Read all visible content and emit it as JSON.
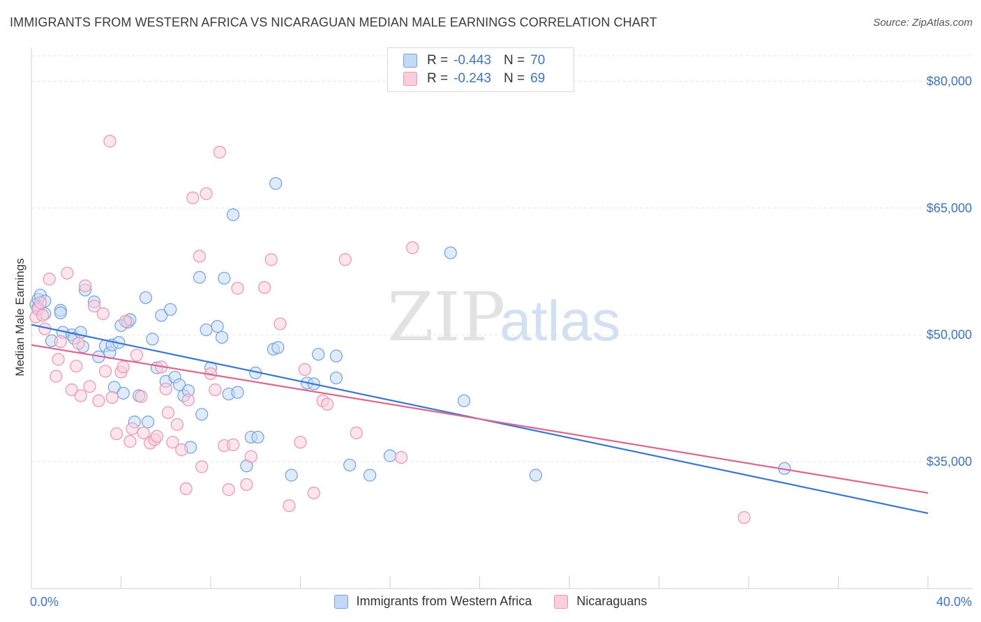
{
  "title": "IMMIGRANTS FROM WESTERN AFRICA VS NICARAGUAN MEDIAN MALE EARNINGS CORRELATION CHART",
  "source": "Source: ZipAtlas.com",
  "watermark": {
    "zip": "ZIP",
    "atlas": "atlas"
  },
  "legend_top": {
    "rows": [
      {
        "r_label": "R =",
        "r_value": "-0.443",
        "n_label": "N =",
        "n_value": "70",
        "color": "#a9c8f0"
      },
      {
        "r_label": "R =",
        "r_value": "-0.243",
        "n_label": "N =",
        "n_value": "69",
        "color": "#f6b8cb"
      }
    ]
  },
  "chart_data": {
    "type": "scatter",
    "title": "IMMIGRANTS FROM WESTERN AFRICA VS NICARAGUAN MEDIAN MALE EARNINGS CORRELATION CHART",
    "xlabel": "",
    "ylabel": "Median Male Earnings",
    "xlim": [
      0,
      40
    ],
    "ylim": [
      20000,
      83000
    ],
    "x_tick_labels": [
      "0.0%",
      "40.0%"
    ],
    "y_ticks": [
      35000,
      50000,
      65000,
      80000
    ],
    "y_tick_labels": [
      "$35,000",
      "$50,000",
      "$65,000",
      "$80,000"
    ],
    "grid": true,
    "legend_position": "bottom",
    "series": [
      {
        "name": "Immigrants from Western Africa",
        "color": "#6fa1e3",
        "fill": "#c4d9f5",
        "trend": {
          "x": [
            0,
            40
          ],
          "y": [
            51200,
            28900
          ],
          "color": "#3877d6"
        },
        "points": [
          [
            0.2,
            53600
          ],
          [
            0.3,
            54200
          ],
          [
            0.3,
            53200
          ],
          [
            0.4,
            54700
          ],
          [
            0.6,
            54000
          ],
          [
            0.6,
            52500
          ],
          [
            0.9,
            49300
          ],
          [
            1.3,
            52900
          ],
          [
            1.3,
            52600
          ],
          [
            1.4,
            50300
          ],
          [
            1.8,
            50000
          ],
          [
            1.9,
            49600
          ],
          [
            2.2,
            50300
          ],
          [
            2.3,
            48600
          ],
          [
            2.4,
            55300
          ],
          [
            2.8,
            53900
          ],
          [
            3.0,
            47400
          ],
          [
            3.3,
            48700
          ],
          [
            3.5,
            47900
          ],
          [
            3.6,
            48800
          ],
          [
            3.7,
            43800
          ],
          [
            3.9,
            49100
          ],
          [
            4.1,
            43100
          ],
          [
            4.0,
            51100
          ],
          [
            4.3,
            51500
          ],
          [
            4.4,
            51800
          ],
          [
            4.6,
            39700
          ],
          [
            4.8,
            42800
          ],
          [
            5.1,
            54400
          ],
          [
            5.2,
            39700
          ],
          [
            5.4,
            49500
          ],
          [
            5.6,
            46100
          ],
          [
            5.8,
            52300
          ],
          [
            6.0,
            44500
          ],
          [
            6.2,
            53000
          ],
          [
            6.4,
            45000
          ],
          [
            6.6,
            44100
          ],
          [
            6.8,
            42800
          ],
          [
            7.0,
            43400
          ],
          [
            7.1,
            36700
          ],
          [
            7.5,
            56800
          ],
          [
            7.6,
            40600
          ],
          [
            7.8,
            50600
          ],
          [
            8.0,
            46100
          ],
          [
            8.3,
            51000
          ],
          [
            8.5,
            49700
          ],
          [
            8.6,
            56700
          ],
          [
            8.8,
            43000
          ],
          [
            9.0,
            64200
          ],
          [
            9.2,
            43200
          ],
          [
            9.6,
            34500
          ],
          [
            9.8,
            37900
          ],
          [
            10.1,
            37900
          ],
          [
            10.0,
            45500
          ],
          [
            10.8,
            48300
          ],
          [
            11.0,
            48500
          ],
          [
            10.9,
            67900
          ],
          [
            11.6,
            33400
          ],
          [
            12.3,
            44300
          ],
          [
            12.6,
            44200
          ],
          [
            12.8,
            47700
          ],
          [
            13.6,
            47500
          ],
          [
            13.6,
            44900
          ],
          [
            14.2,
            34600
          ],
          [
            15.1,
            33400
          ],
          [
            16.0,
            35700
          ],
          [
            18.7,
            59700
          ],
          [
            19.3,
            42200
          ],
          [
            22.5,
            33400
          ],
          [
            33.6,
            34200
          ]
        ]
      },
      {
        "name": "Nicaraguans",
        "color": "#ef93b0",
        "fill": "#f9cfdc",
        "trend": {
          "x": [
            0,
            40
          ],
          "y": [
            48800,
            31300
          ],
          "color": "#e0658e"
        },
        "points": [
          [
            0.2,
            52100
          ],
          [
            0.3,
            53000
          ],
          [
            0.4,
            53800
          ],
          [
            0.5,
            52300
          ],
          [
            0.6,
            50700
          ],
          [
            0.8,
            56600
          ],
          [
            1.1,
            45100
          ],
          [
            1.2,
            47100
          ],
          [
            1.3,
            49200
          ],
          [
            1.6,
            57300
          ],
          [
            1.8,
            43500
          ],
          [
            2.0,
            46300
          ],
          [
            2.1,
            49000
          ],
          [
            2.2,
            42800
          ],
          [
            2.4,
            55800
          ],
          [
            2.6,
            43900
          ],
          [
            2.8,
            53400
          ],
          [
            3.0,
            42200
          ],
          [
            3.2,
            52500
          ],
          [
            3.3,
            45700
          ],
          [
            3.5,
            72900
          ],
          [
            3.6,
            42600
          ],
          [
            3.8,
            38300
          ],
          [
            4.0,
            45600
          ],
          [
            4.1,
            46200
          ],
          [
            4.2,
            51600
          ],
          [
            4.4,
            37400
          ],
          [
            4.5,
            38900
          ],
          [
            4.7,
            47600
          ],
          [
            4.9,
            42700
          ],
          [
            5.0,
            38400
          ],
          [
            5.3,
            37200
          ],
          [
            5.5,
            37600
          ],
          [
            5.6,
            38000
          ],
          [
            5.8,
            46200
          ],
          [
            6.0,
            43600
          ],
          [
            6.1,
            40800
          ],
          [
            6.3,
            37300
          ],
          [
            6.5,
            39400
          ],
          [
            6.7,
            36400
          ],
          [
            6.9,
            31800
          ],
          [
            7.0,
            42300
          ],
          [
            7.2,
            66200
          ],
          [
            7.5,
            59300
          ],
          [
            7.6,
            34400
          ],
          [
            7.8,
            66700
          ],
          [
            8.0,
            45400
          ],
          [
            8.2,
            43500
          ],
          [
            8.4,
            71600
          ],
          [
            8.6,
            36900
          ],
          [
            8.8,
            31700
          ],
          [
            9.0,
            37000
          ],
          [
            9.2,
            55500
          ],
          [
            9.6,
            32300
          ],
          [
            9.8,
            35600
          ],
          [
            10.4,
            55600
          ],
          [
            10.7,
            58900
          ],
          [
            11.1,
            51300
          ],
          [
            11.5,
            29800
          ],
          [
            12.0,
            37300
          ],
          [
            12.2,
            45900
          ],
          [
            12.6,
            31300
          ],
          [
            13.0,
            42200
          ],
          [
            13.2,
            41800
          ],
          [
            14.0,
            58900
          ],
          [
            14.5,
            38400
          ],
          [
            16.5,
            35500
          ],
          [
            17.0,
            60300
          ],
          [
            31.8,
            28400
          ]
        ]
      }
    ]
  }
}
